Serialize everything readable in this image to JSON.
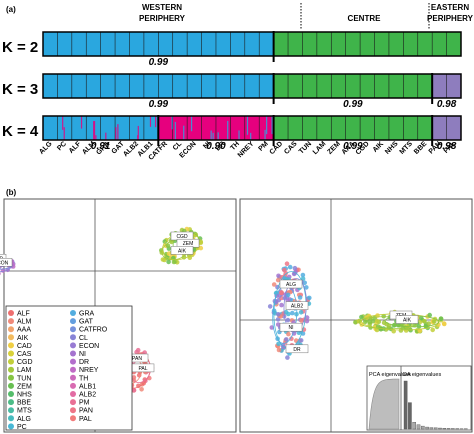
{
  "figure": {
    "panel_a_label": "(a)",
    "panel_b_label": "(b)"
  },
  "chart_data": [
    {
      "type": "bar",
      "title": "",
      "region_labels": [
        {
          "id": "western",
          "lines": [
            "WESTERN",
            "PERIPHERY"
          ]
        },
        {
          "id": "centre",
          "lines": [
            "CENTRE"
          ]
        },
        {
          "id": "eastern",
          "lines": [
            "EASTERN",
            "PERIPHERY"
          ]
        }
      ],
      "k_labels": [
        "K = 2",
        "K = 3",
        "K = 4"
      ],
      "populations": [
        "ALG",
        "PC",
        "ALF",
        "ALM",
        "GRA",
        "GAT",
        "ALB2",
        "ALB1",
        "CATFR",
        "CL",
        "ECON",
        "NI",
        "DR",
        "TH",
        "NREY",
        "PM",
        "CAD",
        "CAS",
        "TUN",
        "LAM",
        "ZEM",
        "AAA",
        "CGD",
        "AIK",
        "NHS",
        "MTS",
        "BBE",
        "PAN",
        "PAL"
      ],
      "colors": {
        "blue": "#2aa7df",
        "green": "#3fb44a",
        "purple": "#8e7dbe",
        "magenta": "#e6007e"
      },
      "rows": [
        {
          "k": "K = 2",
          "groups": [
            {
              "color": "blue",
              "start": 0,
              "end": 16,
              "value": "0.99"
            },
            {
              "color": "green",
              "start": 16,
              "end": 29,
              "value": ""
            }
          ]
        },
        {
          "k": "K = 3",
          "groups": [
            {
              "color": "blue",
              "start": 0,
              "end": 16,
              "value": "0.99"
            },
            {
              "color": "green",
              "start": 16,
              "end": 27,
              "value": "0.99"
            },
            {
              "color": "purple",
              "start": 27,
              "end": 29,
              "value": "0.98"
            }
          ]
        },
        {
          "k": "K = 4",
          "groups": [
            {
              "color": "blue",
              "start": 0,
              "end": 8,
              "value": "0.91"
            },
            {
              "color": "magenta",
              "start": 8,
              "end": 16,
              "value": "0.90"
            },
            {
              "color": "green",
              "start": 16,
              "end": 27,
              "value": "0.99"
            },
            {
              "color": "purple",
              "start": 27,
              "end": 29,
              "value": "0.98"
            }
          ]
        }
      ]
    },
    {
      "type": "scatter",
      "title": "",
      "legend": [
        {
          "name": "ALF",
          "color": "#ee6f6f"
        },
        {
          "name": "ALM",
          "color": "#f08a7a"
        },
        {
          "name": "AAA",
          "color": "#f2a46e"
        },
        {
          "name": "AIK",
          "color": "#f3bb5e"
        },
        {
          "name": "CAD",
          "color": "#f0cf45"
        },
        {
          "name": "CAS",
          "color": "#d9d23a"
        },
        {
          "name": "CGD",
          "color": "#c2cf39"
        },
        {
          "name": "LAM",
          "color": "#a4c93b"
        },
        {
          "name": "TUN",
          "color": "#85c443"
        },
        {
          "name": "ZEM",
          "color": "#68bf52"
        },
        {
          "name": "NHS",
          "color": "#55bd6b"
        },
        {
          "name": "BBE",
          "color": "#4dbc88"
        },
        {
          "name": "MTS",
          "color": "#48bca4"
        },
        {
          "name": "ALG",
          "color": "#47bcbf"
        },
        {
          "name": "PC",
          "color": "#49b8d6"
        },
        {
          "name": "GRA",
          "color": "#53addf"
        },
        {
          "name": "GAT",
          "color": "#649fdf"
        },
        {
          "name": "CATFRO",
          "color": "#7791dc"
        },
        {
          "name": "CL",
          "color": "#8884d7"
        },
        {
          "name": "ECON",
          "color": "#987bd3"
        },
        {
          "name": "NI",
          "color": "#a574cf"
        },
        {
          "name": "DR",
          "color": "#b36fcc"
        },
        {
          "name": "NREY",
          "color": "#c06bc6"
        },
        {
          "name": "TH",
          "color": "#cc6abd"
        },
        {
          "name": "ALB1",
          "color": "#d86bb1"
        },
        {
          "name": "ALB2",
          "color": "#e26ca3"
        },
        {
          "name": "PM",
          "color": "#e97095"
        },
        {
          "name": "PAN",
          "color": "#ee7587"
        },
        {
          "name": "PAL",
          "color": "#f27b7b"
        }
      ],
      "left_plot": {
        "clusters": [
          {
            "name": "western",
            "center": [
              -0.6,
              0.15
            ],
            "colors": [
              "#8884d7",
              "#a574cf",
              "#7791dc",
              "#c06bc6"
            ],
            "labels": [
              "CATFR",
              "ECON"
            ]
          },
          {
            "name": "centre",
            "center": [
              0.6,
              0.7
            ],
            "colors": [
              "#c2cf39",
              "#a4c93b",
              "#85c443",
              "#f0cf45",
              "#68bf52"
            ],
            "labels": [
              "CGD",
              "ZEM",
              "AIK"
            ]
          },
          {
            "name": "eastern",
            "center": [
              0.05,
              -0.9
            ],
            "colors": [
              "#ee6f6f",
              "#f08a7a",
              "#e97095",
              "#f27b7b"
            ],
            "labels": [
              "PAN",
              "PAL"
            ]
          }
        ]
      },
      "right_plot": {
        "clusters": [
          {
            "name": "western",
            "center": [
              -0.55,
              -0.1
            ],
            "colors": [
              "#49b8d6",
              "#53addf",
              "#8884d7",
              "#a574cf",
              "#ee7587",
              "#f08a7a"
            ],
            "labels": [
              "ALG",
              "ALB2",
              "NI",
              "DR"
            ]
          },
          {
            "name": "centre",
            "center": [
              0.55,
              -0.3
            ],
            "colors": [
              "#c2cf39",
              "#a4c93b",
              "#85c443",
              "#f0cf45",
              "#68bf52"
            ],
            "labels": [
              "ZEM",
              "AIK"
            ]
          }
        ],
        "inset": {
          "pca_label": "PCA eigenvalues",
          "da_label": "DA eigenvalues",
          "da_values": [
            10,
            5.5,
            1.4,
            0.9,
            0.6,
            0.4,
            0.3,
            0.25,
            0.2,
            0.15,
            0.12,
            0.1,
            0.08,
            0.06,
            0.05
          ]
        }
      }
    }
  ]
}
